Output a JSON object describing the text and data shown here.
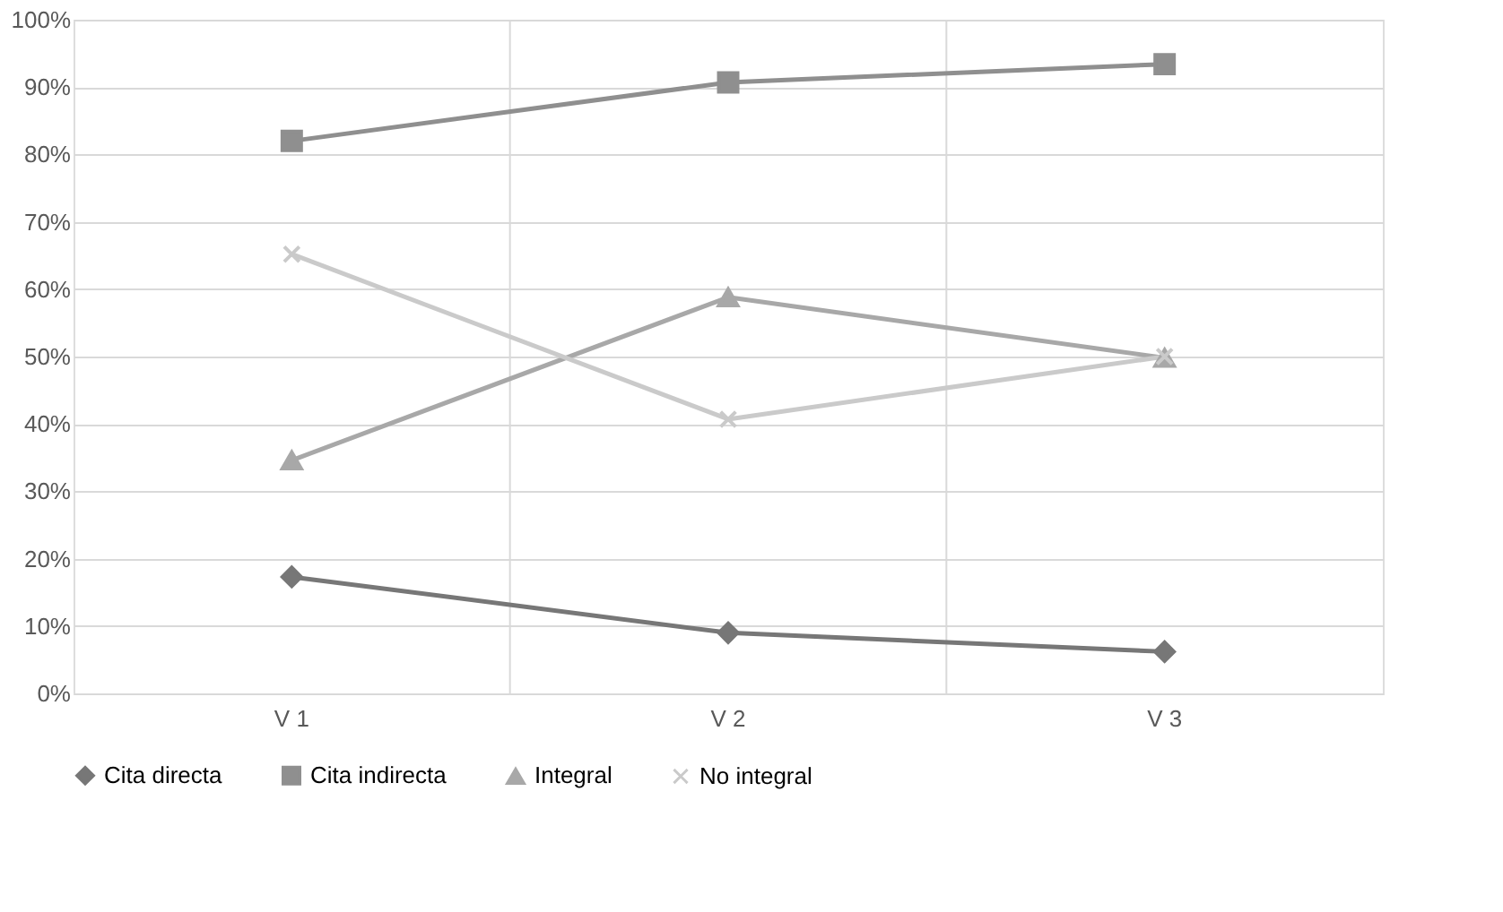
{
  "chart_data": {
    "type": "line",
    "categories": [
      "V 1",
      "V 2",
      "V 3"
    ],
    "series": [
      {
        "name": "Cita directa",
        "color": "#777777",
        "marker": "diamond",
        "values": [
          17.3,
          9.0,
          6.2
        ]
      },
      {
        "name": "Cita indirecta",
        "color": "#8f8f8f",
        "marker": "square",
        "values": [
          82.0,
          90.7,
          93.4
        ]
      },
      {
        "name": "Integral",
        "color": "#a8a8a8",
        "marker": "triangle",
        "values": [
          34.6,
          58.8,
          49.8
        ]
      },
      {
        "name": "No integral",
        "color": "#cacaca",
        "marker": "cross",
        "values": [
          65.2,
          40.7,
          50.0
        ]
      }
    ],
    "ylim": [
      0,
      100
    ],
    "yticks": [
      {
        "value": 0,
        "label": "0%"
      },
      {
        "value": 10,
        "label": "10%"
      },
      {
        "value": 20,
        "label": "20%"
      },
      {
        "value": 30,
        "label": "30%"
      },
      {
        "value": 40,
        "label": "40%"
      },
      {
        "value": 50,
        "label": "50%"
      },
      {
        "value": 60,
        "label": "60%"
      },
      {
        "value": 70,
        "label": "70%"
      },
      {
        "value": 80,
        "label": "80%"
      },
      {
        "value": 90,
        "label": "90%"
      },
      {
        "value": 100,
        "label": "100%"
      }
    ],
    "grid": true,
    "legend": "bottom"
  }
}
